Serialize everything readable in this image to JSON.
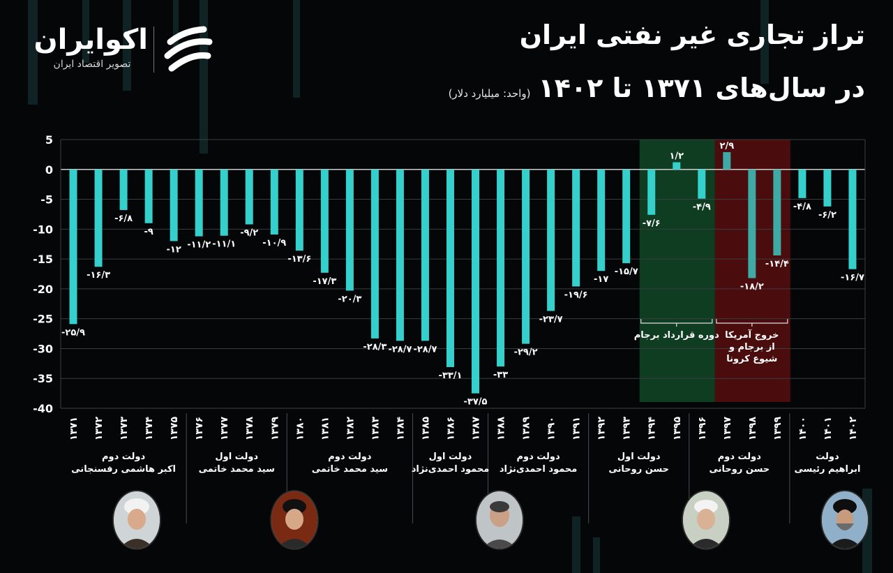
{
  "brand": {
    "name": "اکوایران",
    "tagline": "تصویر اقتصاد ایران"
  },
  "header": {
    "title_line1": "تراز تجاری غیر نفتی ایران",
    "title_line2": "در سال‌های ۱۳۷۱ تا ۱۴۰۲",
    "unit": "(واحد: میلیارد دلار)"
  },
  "colors": {
    "bar": "#35d0cc",
    "bar_muted": "#3fa9a6",
    "jcpoa_band": "#0f3d22",
    "exit_band": "#4a0c0c",
    "background": "#050607"
  },
  "chart_data": {
    "type": "bar",
    "ylim": [
      -40,
      5
    ],
    "yticks": [
      "5",
      "0",
      "-5",
      "-10",
      "-15",
      "-20",
      "-25",
      "-30",
      "-35",
      "-40"
    ],
    "grid": true,
    "categories": [
      "۱۳۷۱",
      "۱۳۷۲",
      "۱۳۷۳",
      "۱۳۷۴",
      "۱۳۷۵",
      "۱۳۷۶",
      "۱۳۷۷",
      "۱۳۷۸",
      "۱۳۷۹",
      "۱۳۸۰",
      "۱۳۸۱",
      "۱۳۸۲",
      "۱۳۸۳",
      "۱۳۸۴",
      "۱۳۸۵",
      "۱۳۸۶",
      "۱۳۸۷",
      "۱۳۸۸",
      "۱۳۸۹",
      "۱۳۹۰",
      "۱۳۹۱",
      "۱۳۹۲",
      "۱۳۹۳",
      "۱۳۹۴",
      "۱۳۹۵",
      "۱۳۹۶",
      "۱۳۹۷",
      "۱۳۹۸",
      "۱۳۹۹",
      "۱۴۰۰",
      "۱۴۰۱",
      "۱۴۰۲"
    ],
    "values": [
      -25.9,
      -16.3,
      -6.8,
      -9,
      -12,
      -11.2,
      -11.1,
      -9.2,
      -10.9,
      -13.6,
      -17.3,
      -20.3,
      -28.3,
      -28.7,
      -28.7,
      -33.1,
      -37.5,
      -33,
      -29.2,
      -23.7,
      -19.6,
      -17,
      -15.7,
      -7.6,
      1.2,
      -4.9,
      2.9,
      -18.2,
      -14.4,
      -4.8,
      -6.2,
      -16.7
    ],
    "value_labels": [
      "-۲۵/۹",
      "-۱۶/۳",
      "-۶/۸",
      "-۹",
      "-۱۲",
      "-۱۱/۲",
      "-۱۱/۱",
      "-۹/۲",
      "-۱۰/۹",
      "-۱۳/۶",
      "-۱۷/۳",
      "-۲۰/۳",
      "-۲۸/۳",
      "-۲۸/۷",
      "-۲۸/۷",
      "-۳۳/۱",
      "-۳۷/۵",
      "-۳۳",
      "-۲۹/۲",
      "-۲۳/۷",
      "-۱۹/۶",
      "-۱۷",
      "-۱۵/۷",
      "-۷/۶",
      "۱/۲",
      "-۴/۹",
      "۲/۹",
      "-۱۸/۲",
      "-۱۴/۴",
      "-۴/۸",
      "-۶/۲",
      "-۱۶/۷"
    ],
    "highlight_regions": [
      {
        "label": "دوره قرارداد برجام",
        "from_index": 23,
        "to_index": 25,
        "color": "#0f3d22"
      },
      {
        "label_lines": [
          "خروج آمریکا",
          "از برجام و",
          "شیوع کرونا"
        ],
        "from_index": 26,
        "to_index": 28,
        "color": "#4a0c0c"
      }
    ],
    "governments": [
      {
        "from_index": 0,
        "to_index": 4,
        "term": "دولت دوم",
        "name": "اکبر هاشمی رفسنجانی"
      },
      {
        "from_index": 5,
        "to_index": 8,
        "term": "دولت اول",
        "name": "سید محمد خاتمی"
      },
      {
        "from_index": 9,
        "to_index": 13,
        "term": "دولت دوم",
        "name": "سید محمد خاتمی"
      },
      {
        "from_index": 14,
        "to_index": 16,
        "term": "دولت اول",
        "name": "محمود احمدی‌نژاد"
      },
      {
        "from_index": 17,
        "to_index": 20,
        "term": "دولت دوم",
        "name": "محمود احمدی‌نژاد"
      },
      {
        "from_index": 21,
        "to_index": 24,
        "term": "دولت اول",
        "name": "حسن روحانی"
      },
      {
        "from_index": 25,
        "to_index": 28,
        "term": "دولت دوم",
        "name": "حسن روحانی"
      },
      {
        "from_index": 29,
        "to_index": 31,
        "term": "دولت",
        "name": "ابراهیم رئیسی"
      }
    ]
  }
}
